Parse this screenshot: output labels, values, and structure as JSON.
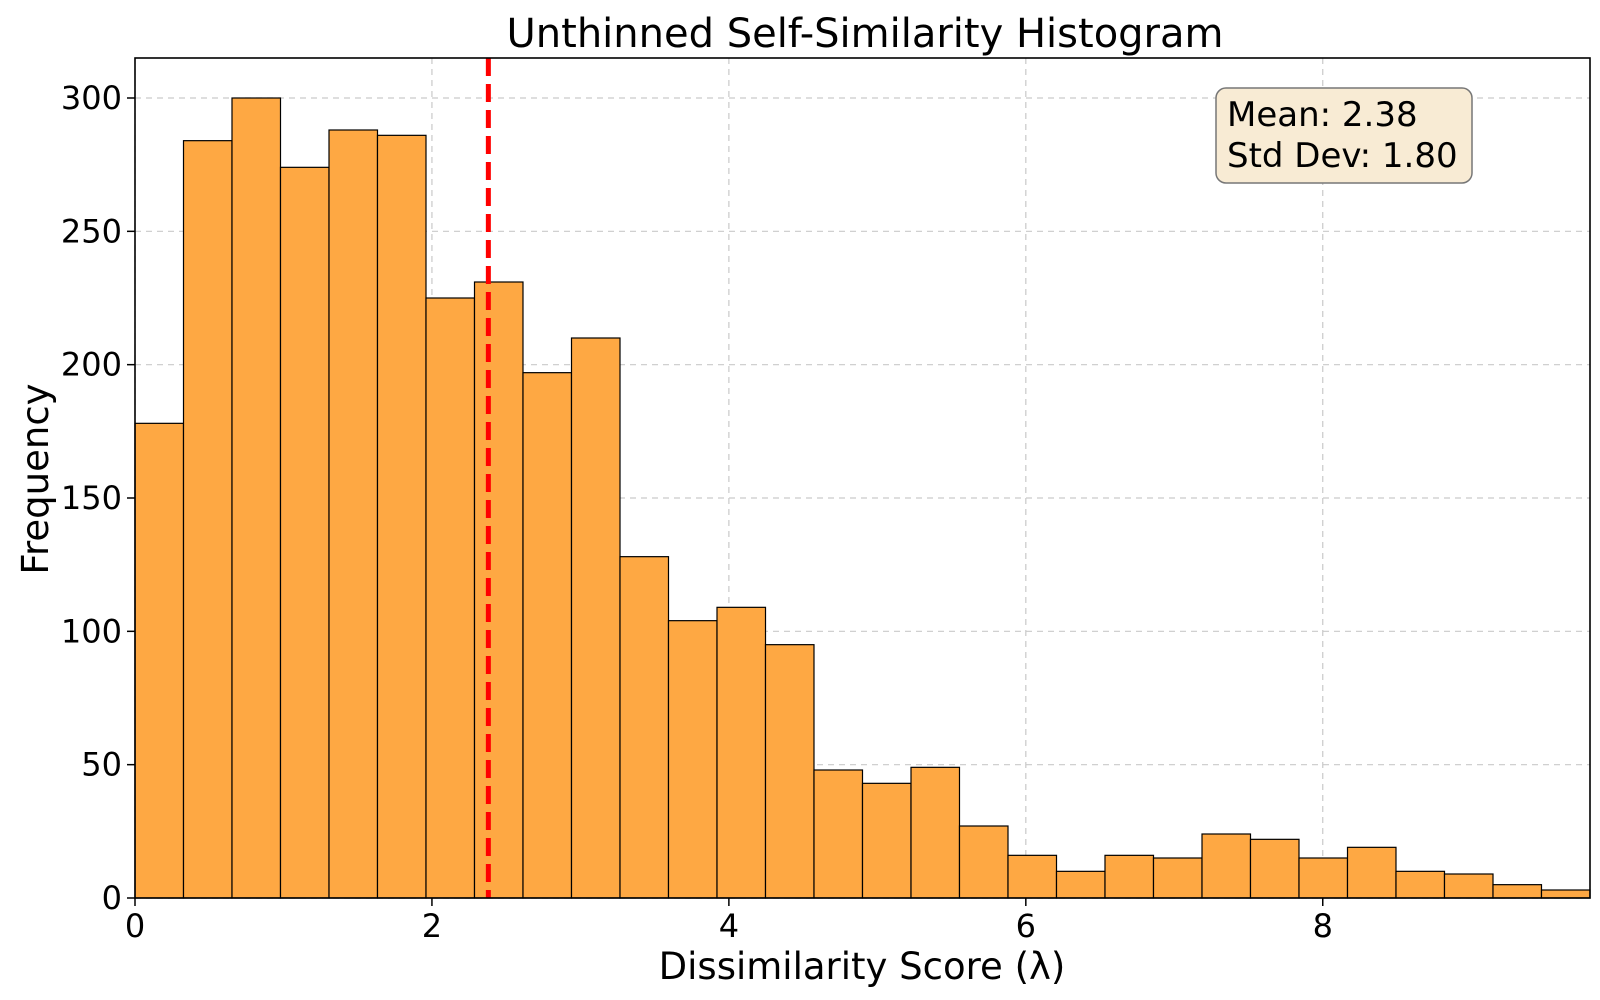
{
  "chart_data": {
    "type": "bar",
    "title": "Unthinned Self-Similarity Histogram",
    "xlabel": "Dissimilarity Score (λ)",
    "ylabel": "Frequency",
    "xlim": [
      0,
      9.8
    ],
    "ylim": [
      0,
      315
    ],
    "grid": true,
    "x_ticks": [
      0,
      2,
      4,
      6,
      8
    ],
    "y_ticks": [
      0,
      50,
      100,
      150,
      200,
      250,
      300
    ],
    "bin_width": 0.3267,
    "bin_edges": [
      0,
      0.3267,
      0.6533,
      0.98,
      1.3067,
      1.6333,
      1.96,
      2.2867,
      2.6133,
      2.94,
      3.2667,
      3.5933,
      3.92,
      4.2467,
      4.5733,
      4.9,
      5.2267,
      5.5533,
      5.88,
      6.2067,
      6.5333,
      6.86,
      7.1867,
      7.5133,
      7.84,
      8.1667,
      8.4933,
      8.82,
      9.1467,
      9.4733,
      9.8
    ],
    "values": [
      178,
      284,
      300,
      274,
      288,
      286,
      225,
      231,
      197,
      210,
      128,
      104,
      109,
      95,
      48,
      43,
      49,
      27,
      16,
      10,
      16,
      15,
      24,
      22,
      15,
      19,
      10,
      9,
      5,
      3
    ],
    "bar_color": "#fea843",
    "bar_edge_color": "#000000",
    "mean_line": {
      "value": 2.38,
      "color": "#ff0000",
      "style": "dashed"
    },
    "stats_box": {
      "mean_text": "Mean: 2.38",
      "std_text": "Std Dev: 1.80",
      "background": "#f8ebd4",
      "border": "#777777"
    }
  }
}
